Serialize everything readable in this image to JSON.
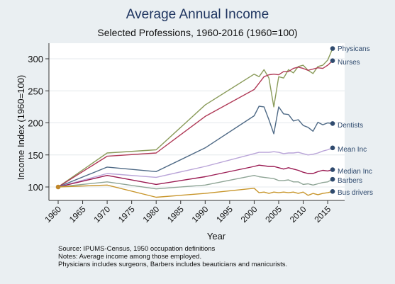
{
  "chart_data": {
    "type": "line",
    "title": "Average Annual Income",
    "subtitle": "Selected Professions, 1960-2016 (1960=100)",
    "xlabel": "Year",
    "ylabel": "Income Index (1960=100)",
    "xlim": [
      1960,
      2016
    ],
    "ylim": [
      90,
      320
    ],
    "xticks": [
      1960,
      1965,
      1970,
      1975,
      1980,
      1985,
      1990,
      1995,
      2000,
      2005,
      2010,
      2015
    ],
    "yticks": [
      100,
      150,
      200,
      250,
      300
    ],
    "grid": true,
    "x": [
      1960,
      1970,
      1980,
      1990,
      2000,
      2001,
      2002,
      2003,
      2004,
      2005,
      2006,
      2007,
      2008,
      2009,
      2010,
      2011,
      2012,
      2013,
      2014,
      2015,
      2016
    ],
    "series": [
      {
        "name": "Physicans",
        "color": "#8a9b5a",
        "values": [
          100,
          153,
          158,
          228,
          276,
          272,
          283,
          270,
          225,
          272,
          270,
          283,
          278,
          288,
          290,
          282,
          277,
          288,
          290,
          298,
          316
        ]
      },
      {
        "name": "Nurses",
        "color": "#b03a57",
        "values": [
          100,
          148,
          153,
          210,
          252,
          262,
          272,
          275,
          276,
          275,
          280,
          280,
          285,
          287,
          285,
          282,
          284,
          286,
          285,
          290,
          297
        ]
      },
      {
        "name": "Dentists",
        "color": "#4f6a86",
        "values": [
          100,
          131,
          124,
          161,
          211,
          226,
          225,
          205,
          183,
          225,
          214,
          213,
          203,
          205,
          196,
          193,
          187,
          201,
          197,
          200,
          199
        ]
      },
      {
        "name": "Mean Inc",
        "color": "#b9a4d8",
        "values": [
          100,
          121,
          115,
          132,
          152,
          154,
          154,
          154,
          155,
          154,
          152,
          153,
          153,
          154,
          152,
          150,
          151,
          153,
          156,
          158,
          161
        ]
      },
      {
        "name": "Median Inc",
        "color": "#9a1a52",
        "values": [
          100,
          118,
          104,
          116,
          132,
          134,
          133,
          132,
          132,
          130,
          128,
          130,
          128,
          126,
          123,
          121,
          121,
          124,
          126,
          125,
          127
        ]
      },
      {
        "name": "Barbers",
        "color": "#8fa596",
        "values": [
          100,
          108,
          97,
          103,
          118,
          116,
          115,
          114,
          113,
          110,
          110,
          111,
          108,
          108,
          104,
          105,
          103,
          105,
          107,
          108,
          112
        ]
      },
      {
        "name": "Bus drivers",
        "color": "#c8962c",
        "values": [
          100,
          103,
          84,
          90,
          98,
          91,
          92,
          90,
          92,
          91,
          92,
          91,
          92,
          90,
          92,
          87,
          90,
          88,
          90,
          91,
          93
        ]
      }
    ],
    "notes": [
      "Source: IPUMS-Census, 1950 occupation definitions",
      "Notes: Average income among those employed.",
      "Physicians includes surgeons, Barbers includes beauticians and manicurists."
    ]
  }
}
